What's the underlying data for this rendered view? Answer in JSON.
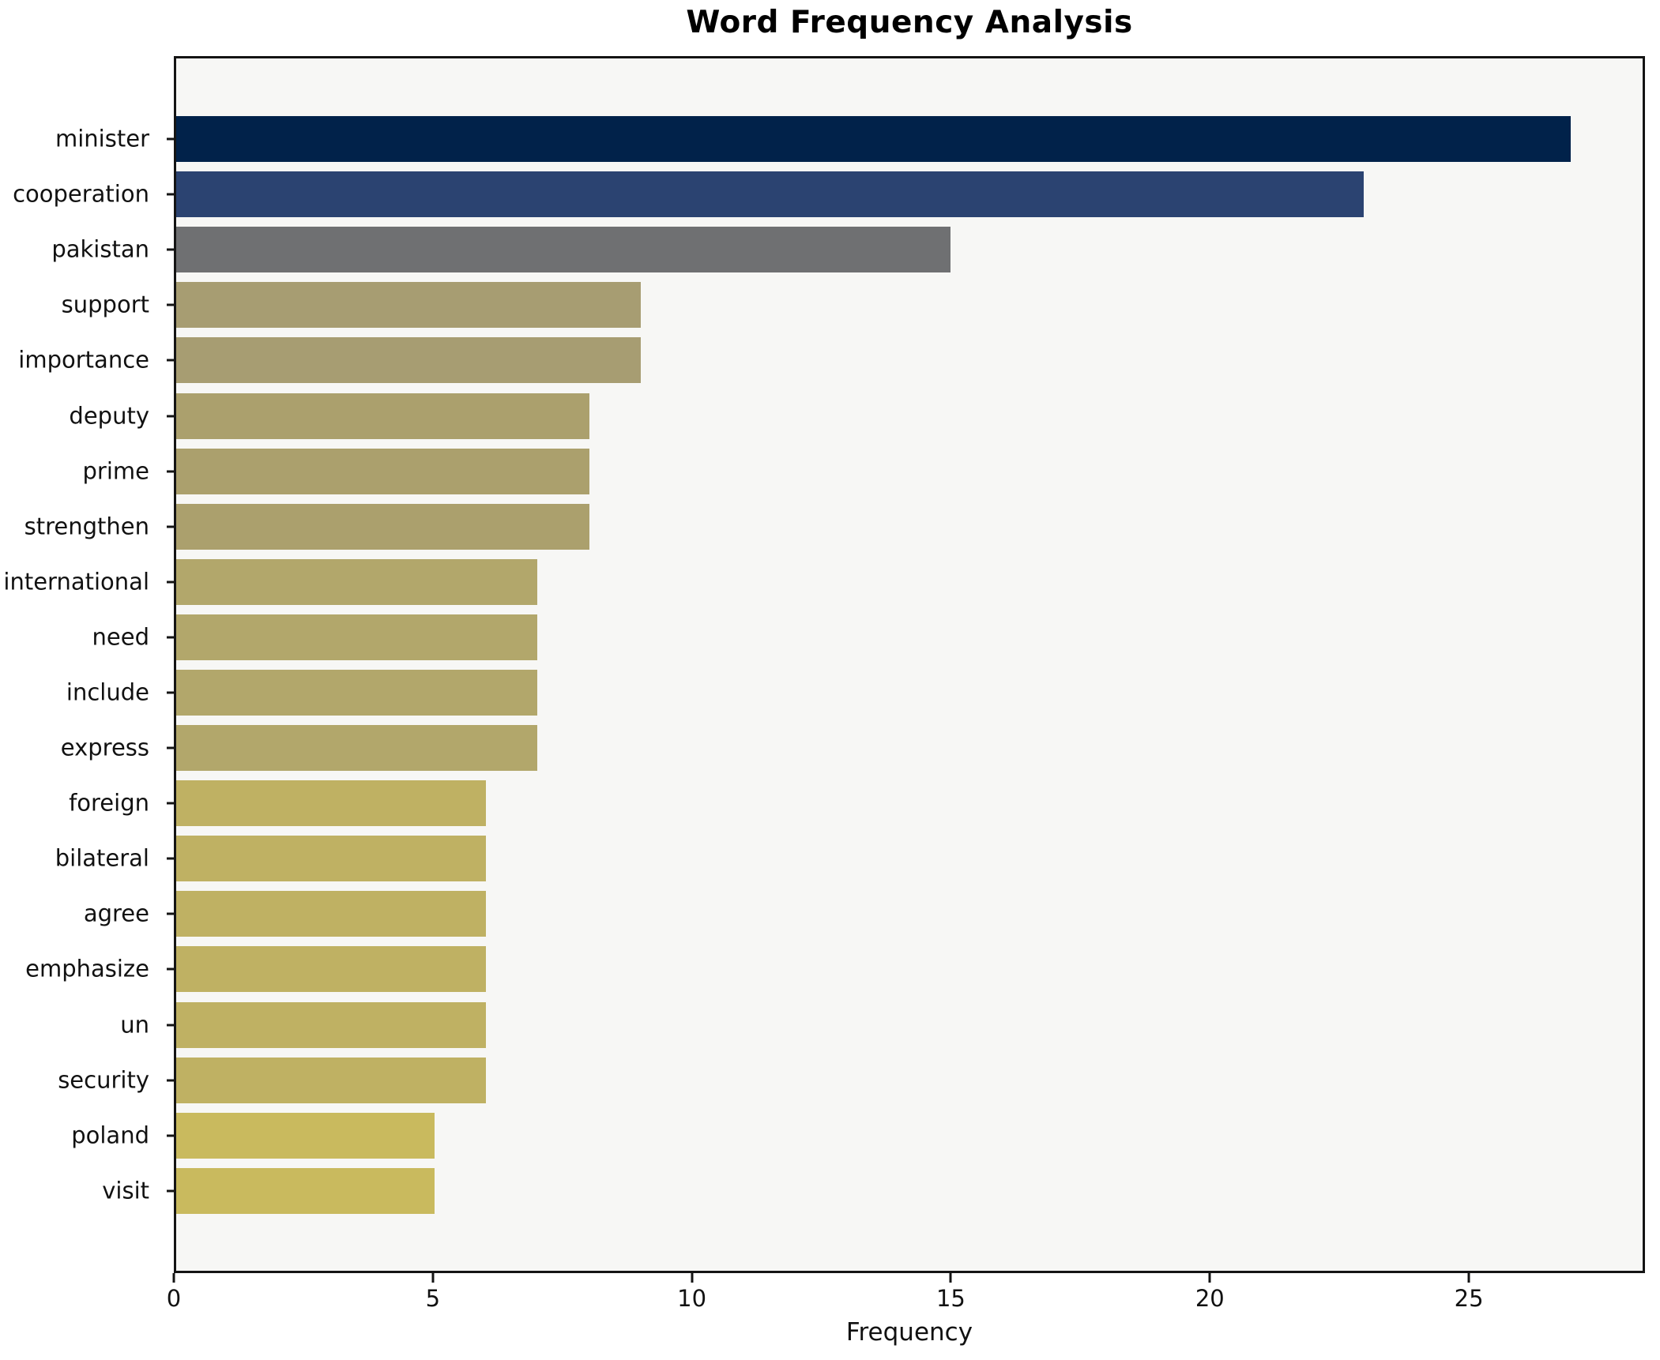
{
  "title": "Word Frequency Analysis",
  "xlabel": "Frequency",
  "colors": {
    "figure_background": "#ffffff",
    "plot_background": "#f7f7f5",
    "spine": "#141414",
    "text": "#111111"
  },
  "chart_data": {
    "type": "bar",
    "orientation": "horizontal",
    "title": "Word Frequency Analysis",
    "xlabel": "Frequency",
    "ylabel": "",
    "grid": false,
    "legend": false,
    "xlim": [
      0,
      28.4
    ],
    "xticks": [
      0,
      5,
      10,
      15,
      20,
      25
    ],
    "categories": [
      "minister",
      "cooperation",
      "pakistan",
      "support",
      "importance",
      "deputy",
      "prime",
      "strengthen",
      "international",
      "need",
      "include",
      "express",
      "foreign",
      "bilateral",
      "agree",
      "emphasize",
      "un",
      "security",
      "poland",
      "visit"
    ],
    "values": [
      27,
      23,
      15,
      9,
      9,
      8,
      8,
      8,
      7,
      7,
      7,
      7,
      6,
      6,
      6,
      6,
      6,
      6,
      5,
      5
    ],
    "bar_colors": [
      "#01224a",
      "#2b4371",
      "#6f7072",
      "#a79d72",
      "#a79d72",
      "#aba06d",
      "#aba06d",
      "#aba06d",
      "#b2a76b",
      "#b2a76b",
      "#b2a76b",
      "#b2a76b",
      "#bfb163",
      "#bfb163",
      "#bfb163",
      "#bfb163",
      "#bfb163",
      "#bfb163",
      "#c9ba5e",
      "#c9ba5e"
    ]
  }
}
